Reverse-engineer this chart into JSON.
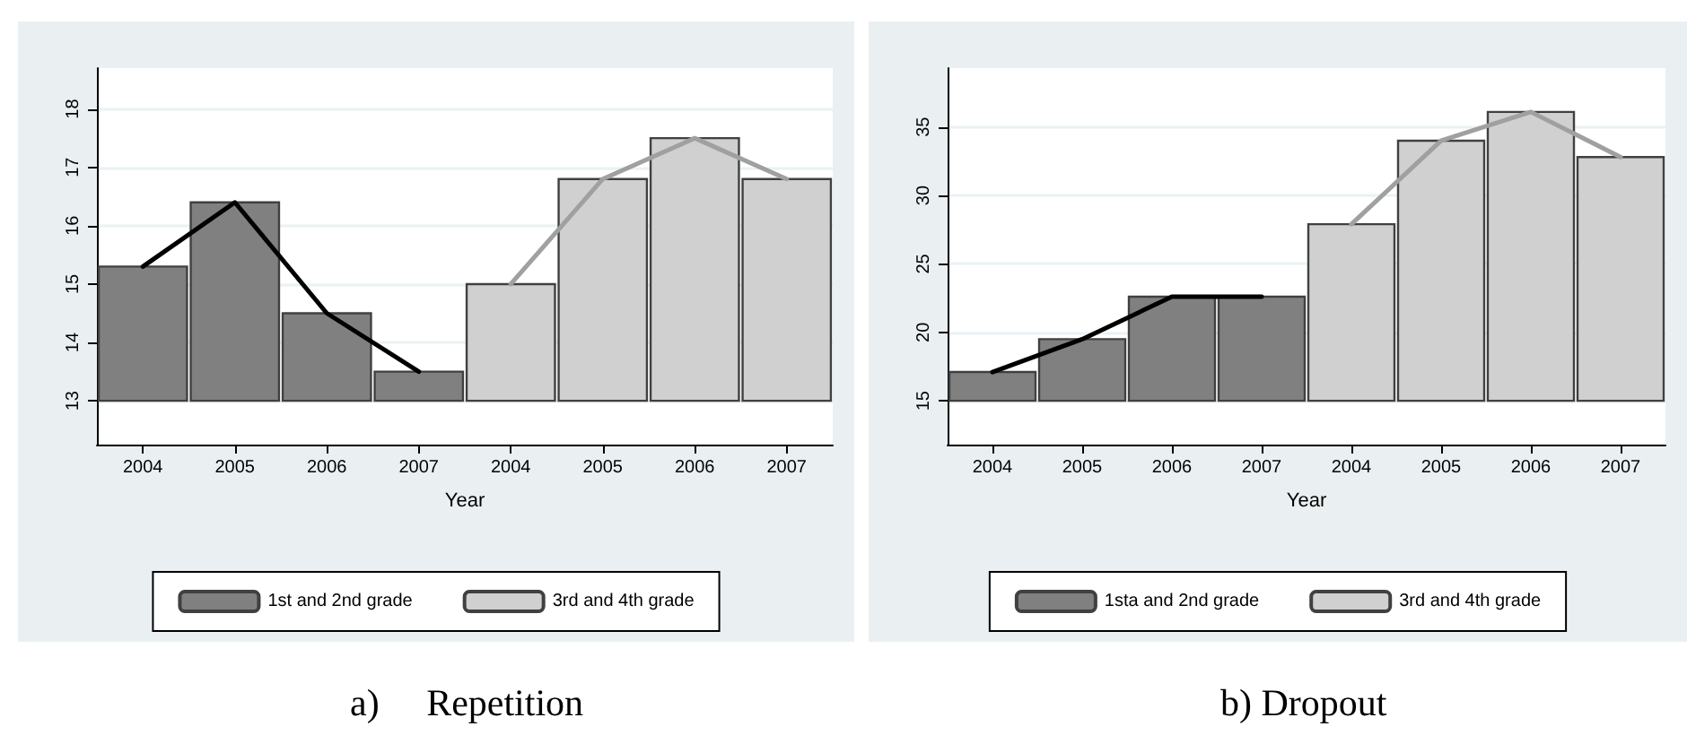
{
  "chart_data": [
    {
      "type": "bar",
      "xlabel": "Year",
      "categories": [
        "2004",
        "2005",
        "2006",
        "2007",
        "2004",
        "2005",
        "2006",
        "2007"
      ],
      "series": [
        {
          "name": "1st and 2nd grade",
          "color": "#808080",
          "base": [
            13,
            13,
            13,
            13,
            null,
            null,
            null,
            null
          ],
          "values": [
            2.3,
            3.4,
            1.5,
            0.5,
            null,
            null,
            null,
            null
          ]
        },
        {
          "name": "3rd and 4th grade",
          "color": "#d0d0d0",
          "base": [
            null,
            null,
            null,
            null,
            13,
            13,
            13,
            13
          ],
          "values": [
            null,
            null,
            null,
            null,
            2.0,
            3.8,
            4.5,
            3.8
          ]
        },
        {
          "type": "line",
          "color": "#000000",
          "values": [
            15.3,
            16.4,
            14.5,
            13.5,
            null,
            null,
            null,
            null
          ]
        },
        {
          "type": "line",
          "color": "#a0a0a0",
          "values": [
            null,
            null,
            null,
            null,
            15.0,
            16.8,
            17.5,
            16.8
          ]
        }
      ],
      "ylim": [
        12.25,
        18.7
      ],
      "yticks": [
        13,
        14,
        15,
        16,
        17,
        18
      ],
      "grid": "y",
      "legend": "bottom",
      "marker": "none",
      "annotations": [
        "a)     Repetition"
      ]
    },
    {
      "type": "bar",
      "xlabel": "Year",
      "categories": [
        "2004",
        "2005",
        "2006",
        "2007",
        "2004",
        "2005",
        "2006",
        "2007"
      ],
      "series": [
        {
          "name": "1sta and 2nd grade",
          "color": "#808080",
          "base": [
            15,
            15,
            15,
            15,
            null,
            null,
            null,
            null
          ],
          "values": [
            2.1,
            4.5,
            7.6,
            7.6,
            null,
            null,
            null,
            null
          ]
        },
        {
          "name": "3rd and 4th grade",
          "color": "#d0d0d0",
          "base": [
            null,
            null,
            null,
            null,
            15,
            15,
            15,
            15
          ],
          "values": [
            null,
            null,
            null,
            null,
            12.9,
            19.0,
            21.1,
            17.8
          ]
        },
        {
          "type": "line",
          "color": "#000000",
          "values": [
            17.1,
            19.5,
            22.6,
            22.6,
            null,
            null,
            null,
            null
          ]
        },
        {
          "type": "line",
          "color": "#a0a0a0",
          "values": [
            null,
            null,
            null,
            null,
            27.9,
            34.0,
            36.1,
            32.8
          ]
        }
      ],
      "ylim": [
        11.8,
        39.3
      ],
      "yticks": [
        15,
        20,
        25,
        30,
        35
      ],
      "grid": "y",
      "legend": "bottom",
      "marker": "none",
      "annotations": [
        "b) Dropout"
      ]
    }
  ]
}
